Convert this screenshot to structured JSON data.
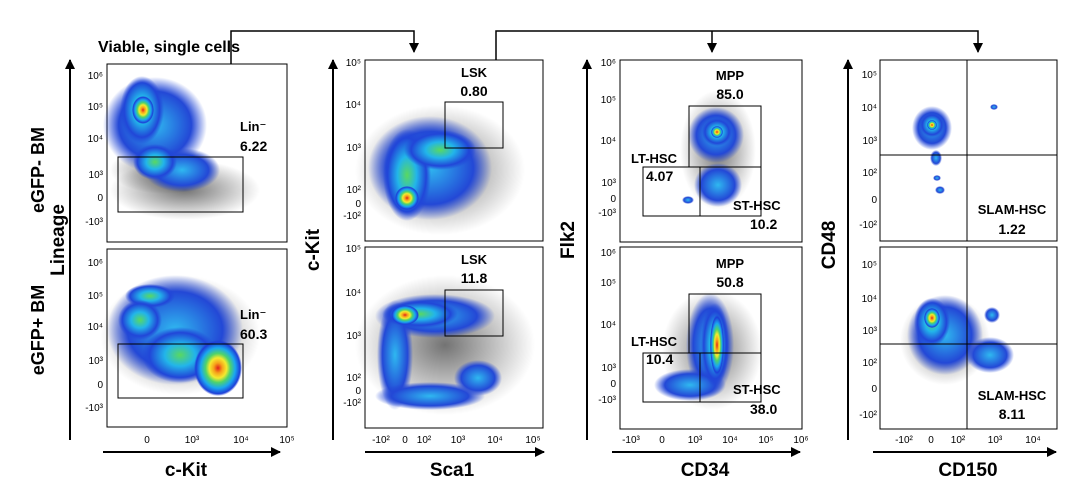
{
  "header": {
    "text": "Viable, single cells"
  },
  "row_labels": [
    "eGFP- BM",
    "eGFP+ BM"
  ],
  "chart_data": [
    {
      "type": "flow-density",
      "column": 1,
      "xlabel": "c-Kit",
      "ylabel": "Lineage",
      "x_ticks": [
        "0",
        "10³",
        "10⁴",
        "10⁵"
      ],
      "y_ticks": [
        "10⁶",
        "10⁵",
        "10⁴",
        "10³",
        "0",
        "-10³"
      ],
      "gate_label": "Lin⁻",
      "gate_values": [
        "6.22",
        "60.3"
      ]
    },
    {
      "type": "flow-density",
      "column": 2,
      "xlabel": "Sca1",
      "ylabel": "c-Kit",
      "x_ticks": [
        "-10²",
        "0",
        "10²",
        "10³",
        "10⁴",
        "10⁵"
      ],
      "y_ticks": [
        "10⁵",
        "10⁴",
        "10³",
        "10²",
        "0",
        "-10²"
      ],
      "gate_label": "LSK",
      "gate_values": [
        "0.80",
        "11.8"
      ]
    },
    {
      "type": "flow-density",
      "column": 3,
      "xlabel": "CD34",
      "ylabel": "Flk2",
      "x_ticks": [
        "-10³",
        "0",
        "10³",
        "10⁴",
        "10⁵",
        "10⁶"
      ],
      "y_ticks": [
        "10⁶",
        "10⁵",
        "10⁴",
        "10³",
        "0",
        "-10³"
      ],
      "gates": [
        {
          "label": "MPP",
          "values": [
            "85.0",
            "50.8"
          ]
        },
        {
          "label": "LT-HSC",
          "values": [
            "4.07",
            "10.4"
          ]
        },
        {
          "label": "ST-HSC",
          "values": [
            "10.2",
            "38.0"
          ]
        }
      ]
    },
    {
      "type": "flow-density",
      "column": 4,
      "xlabel": "CD150",
      "ylabel": "CD48",
      "x_ticks": [
        "-10²",
        "0",
        "10²",
        "10³",
        "10⁴"
      ],
      "y_ticks": [
        "10⁵",
        "10⁴",
        "10³",
        "10²",
        "0",
        "-10²"
      ],
      "gate_label": "SLAM-HSC",
      "gate_values": [
        "1.22",
        "8.11"
      ]
    }
  ]
}
